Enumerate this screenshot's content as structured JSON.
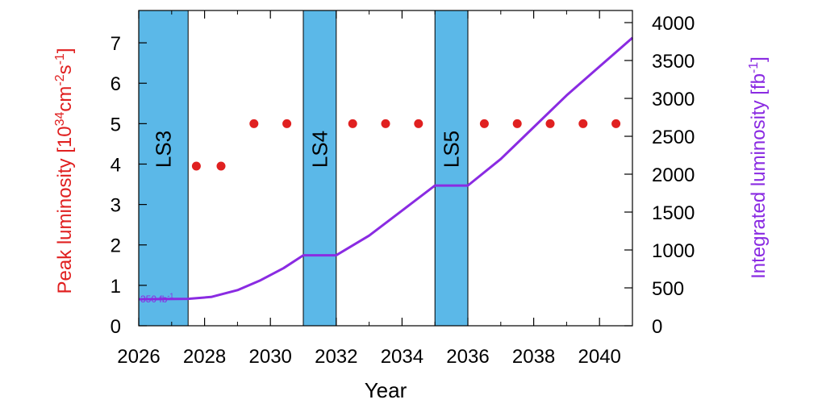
{
  "chart_data": {
    "type": "line",
    "title": "",
    "xlabel": "Year",
    "ylabel_left": {
      "main": "Peak luminosity [10",
      "sup1": "34",
      "mid1": "cm",
      "sup2": "-2",
      "mid2": "s",
      "sup3": "-1",
      "end": "]"
    },
    "ylabel_right": {
      "main": "Integrated luminosity [fb",
      "sup": "-1",
      "end": "]"
    },
    "xlim": [
      2026,
      2041
    ],
    "ylim_left": [
      0,
      7.8
    ],
    "ylim_right": [
      0,
      4160
    ],
    "x_ticks": [
      2026,
      2028,
      2030,
      2032,
      2034,
      2036,
      2038,
      2040
    ],
    "x_minor_ticks": [
      2027,
      2029,
      2031,
      2033,
      2035,
      2037,
      2039
    ],
    "y_left_ticks": [
      0,
      1,
      2,
      3,
      4,
      5,
      6,
      7
    ],
    "y_right_ticks": [
      0,
      500,
      1000,
      1500,
      2000,
      2500,
      3000,
      3500,
      4000
    ],
    "shutdowns": [
      {
        "label": "LS3",
        "start": 2026,
        "end": 2027.5
      },
      {
        "label": "LS4",
        "start": 2031,
        "end": 2032
      },
      {
        "label": "LS5",
        "start": 2035,
        "end": 2036
      }
    ],
    "series": [
      {
        "axis": "left",
        "kind": "scatter",
        "x": [
          2027.75,
          2028.5,
          2029.5,
          2030.5,
          2032.5,
          2033.5,
          2034.5,
          2036.5,
          2037.5,
          2038.5,
          2039.5,
          2040.5
        ],
        "y": [
          3.95,
          3.95,
          5.0,
          5.0,
          5.0,
          5.0,
          5.0,
          5.0,
          5.0,
          5.0,
          5.0,
          5.0
        ]
      },
      {
        "axis": "right",
        "kind": "line",
        "x": [
          2026,
          2027.5,
          2028.2,
          2029,
          2029.7,
          2030.4,
          2031,
          2032,
          2033,
          2034,
          2035,
          2036,
          2037,
          2038,
          2039,
          2040,
          2041
        ],
        "y": [
          350,
          355,
          380,
          470,
          600,
          760,
          930,
          930,
          1190,
          1520,
          1850,
          1850,
          2200,
          2620,
          3040,
          3420,
          3800
        ]
      }
    ],
    "annotation": {
      "text": "350 fb",
      "sup": "-1",
      "x": 2026,
      "y": 350
    },
    "colors": {
      "scatter": "#e02020",
      "line": "#8a2be2",
      "band": "#5bb8e8",
      "ylabel_left": "#e02020",
      "ylabel_right": "#8a2be2",
      "axis": "#000000"
    },
    "grid": false,
    "legend": "none"
  }
}
